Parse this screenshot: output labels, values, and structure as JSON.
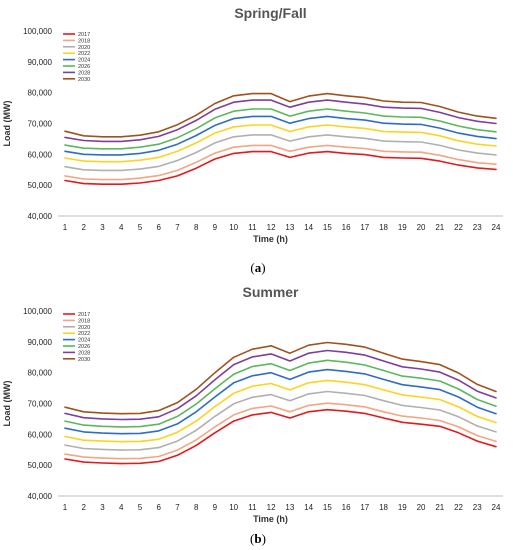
{
  "chart_data": [
    {
      "type": "line",
      "title": "Spring/Fall",
      "caption_letter": "a",
      "xlabel": "Time (h)",
      "ylabel": "Load (MW)",
      "x": [
        1,
        2,
        3,
        4,
        5,
        6,
        7,
        8,
        9,
        10,
        11,
        12,
        13,
        14,
        15,
        16,
        17,
        18,
        19,
        20,
        21,
        22,
        23,
        24
      ],
      "ylim": [
        40000,
        100000
      ],
      "yticks": [
        "40,000",
        "50,000",
        "60,000",
        "70,000",
        "80,000",
        "90,000",
        "100,000"
      ],
      "yticks_values": [
        40000,
        50000,
        60000,
        70000,
        80000,
        90000,
        100000
      ],
      "grid": false,
      "legend_position": "top-left",
      "series": [
        {
          "name": "2017",
          "color": "#e31a1c",
          "values": [
            51500,
            50500,
            50300,
            50300,
            50700,
            51500,
            53000,
            55500,
            58500,
            60300,
            60900,
            60900,
            59000,
            60400,
            60900,
            60300,
            59900,
            59000,
            58800,
            58700,
            57800,
            56500,
            55600,
            55100
          ]
        },
        {
          "name": "2018",
          "color": "#f4a582",
          "values": [
            53000,
            52000,
            51800,
            51800,
            52300,
            53100,
            54800,
            57400,
            60400,
            62300,
            62900,
            62900,
            61000,
            62300,
            62900,
            62300,
            61900,
            61000,
            60800,
            60700,
            59700,
            58300,
            57300,
            56800
          ]
        },
        {
          "name": "2020",
          "color": "#b0b0b0",
          "values": [
            56000,
            55000,
            54800,
            54800,
            55200,
            56100,
            58000,
            60600,
            63700,
            65700,
            66300,
            66300,
            64300,
            65700,
            66300,
            65700,
            65200,
            64300,
            64100,
            64000,
            62900,
            61400,
            60400,
            59800
          ]
        },
        {
          "name": "2022",
          "color": "#ffd21f",
          "values": [
            58800,
            57800,
            57600,
            57600,
            58100,
            59000,
            61000,
            63700,
            66900,
            68900,
            69500,
            69500,
            67400,
            68900,
            69500,
            68900,
            68400,
            67400,
            67200,
            67100,
            66000,
            64400,
            63300,
            62700
          ]
        },
        {
          "name": "2024",
          "color": "#2f6cc7",
          "values": [
            61000,
            60000,
            59800,
            59800,
            60300,
            61300,
            63300,
            66100,
            69400,
            71600,
            72300,
            72300,
            70100,
            71600,
            72300,
            71600,
            71100,
            70100,
            69800,
            69700,
            68500,
            66900,
            65800,
            65100
          ]
        },
        {
          "name": "2026",
          "color": "#5cb85c",
          "values": [
            63000,
            62000,
            61800,
            61800,
            62300,
            63300,
            65400,
            68300,
            71800,
            74000,
            74700,
            74700,
            72400,
            74000,
            74700,
            74000,
            73400,
            72400,
            72100,
            72000,
            70800,
            69200,
            68000,
            67300
          ]
        },
        {
          "name": "2028",
          "color": "#7b3fa0",
          "values": [
            65500,
            64500,
            64200,
            64200,
            64700,
            65800,
            68000,
            71000,
            74600,
            76900,
            77600,
            77600,
            75300,
            76900,
            77600,
            76900,
            76300,
            75300,
            75000,
            74900,
            73600,
            71900,
            70700,
            70000
          ]
        },
        {
          "name": "2030",
          "color": "#a0521c",
          "values": [
            67500,
            66000,
            65700,
            65700,
            66200,
            67300,
            69600,
            72700,
            76500,
            79000,
            79700,
            79700,
            77100,
            78900,
            79700,
            79000,
            78400,
            77300,
            76900,
            76800,
            75500,
            73700,
            72400,
            71700
          ]
        }
      ]
    },
    {
      "type": "line",
      "title": "Summer",
      "caption_letter": "b",
      "xlabel": "Time (h)",
      "ylabel": "Load (MW)",
      "x": [
        1,
        2,
        3,
        4,
        5,
        6,
        7,
        8,
        9,
        10,
        11,
        12,
        13,
        14,
        15,
        16,
        17,
        18,
        19,
        20,
        21,
        22,
        23,
        24
      ],
      "ylim": [
        40000,
        100000
      ],
      "yticks": [
        "40,000",
        "50,000",
        "60,000",
        "70,000",
        "80,000",
        "90,000",
        "100,000"
      ],
      "yticks_values": [
        40000,
        50000,
        60000,
        70000,
        80000,
        90000,
        100000
      ],
      "grid": false,
      "legend_position": "top-left",
      "series": [
        {
          "name": "2017",
          "color": "#e31a1c",
          "values": [
            52000,
            51000,
            50700,
            50500,
            50600,
            51200,
            53200,
            56400,
            60500,
            64300,
            66300,
            67100,
            65300,
            67300,
            68000,
            67500,
            66800,
            65300,
            63900,
            63300,
            62600,
            60500,
            57800,
            56000
          ]
        },
        {
          "name": "2018",
          "color": "#f4a582",
          "values": [
            53600,
            52600,
            52300,
            52100,
            52200,
            52800,
            54900,
            58200,
            62400,
            66300,
            68400,
            69200,
            67300,
            69400,
            70100,
            69600,
            68900,
            67300,
            65900,
            65300,
            64500,
            62400,
            59600,
            57700
          ]
        },
        {
          "name": "2020",
          "color": "#b0b0b0",
          "values": [
            56500,
            55400,
            55100,
            54900,
            55000,
            55700,
            57800,
            61300,
            65800,
            69900,
            72000,
            72900,
            70900,
            73100,
            73900,
            73300,
            72600,
            70900,
            69400,
            68700,
            67900,
            65700,
            62700,
            60800
          ]
        },
        {
          "name": "2022",
          "color": "#ffd21f",
          "values": [
            59300,
            58100,
            57800,
            57600,
            57700,
            58400,
            60700,
            64300,
            69000,
            73300,
            75600,
            76500,
            74400,
            76700,
            77500,
            76900,
            76100,
            74400,
            72800,
            72100,
            71300,
            68900,
            65800,
            63800
          ]
        },
        {
          "name": "2024",
          "color": "#2f6cc7",
          "values": [
            62000,
            60800,
            60400,
            60200,
            60300,
            61100,
            63400,
            67300,
            72100,
            76700,
            79000,
            80000,
            77800,
            80200,
            81000,
            80400,
            79600,
            77800,
            76100,
            75400,
            74500,
            72100,
            68800,
            66700
          ]
        },
        {
          "name": "2026",
          "color": "#5cb85c",
          "values": [
            64300,
            63000,
            62600,
            62400,
            62500,
            63300,
            65800,
            69800,
            74800,
            79500,
            82000,
            82900,
            80700,
            83100,
            84000,
            83400,
            82500,
            80700,
            78900,
            78200,
            77300,
            74700,
            71300,
            69100
          ]
        },
        {
          "name": "2028",
          "color": "#7b3fa0",
          "values": [
            66800,
            65400,
            65000,
            64800,
            64900,
            65700,
            68300,
            72500,
            77700,
            82600,
            85100,
            86100,
            83800,
            86300,
            87200,
            86600,
            85700,
            83800,
            81900,
            81200,
            80200,
            77600,
            74000,
            71800
          ]
        },
        {
          "name": "2030",
          "color": "#a0521c",
          "values": [
            68800,
            67300,
            66900,
            66700,
            66800,
            67700,
            70300,
            74600,
            80000,
            85000,
            87600,
            88700,
            86300,
            88900,
            89800,
            89200,
            88300,
            86300,
            84400,
            83600,
            82600,
            79900,
            76200,
            73900
          ]
        }
      ]
    }
  ]
}
